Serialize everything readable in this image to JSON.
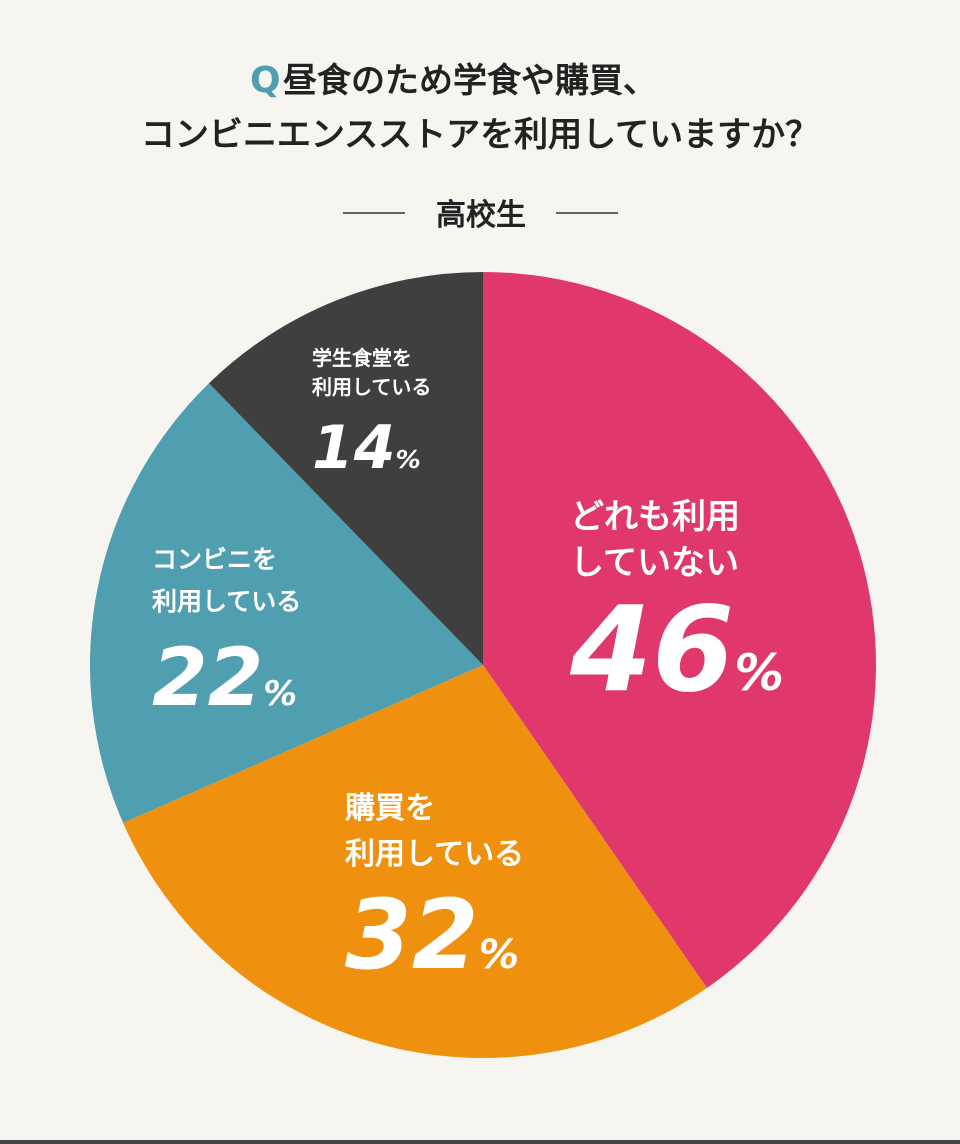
{
  "chart_data": {
    "type": "pie",
    "question_marker": "Q",
    "title": [
      "昼食のため学食や購買、",
      "コンビニエンスストアを利用していますか？"
    ],
    "subtitle": "高校生",
    "categories": [
      [
        "どれも利用",
        "していない"
      ],
      [
        "購買を",
        "利用している"
      ],
      [
        "コンビニを",
        "利用している"
      ],
      [
        "学生食堂を",
        "利用している"
      ]
    ],
    "values": [
      46,
      32,
      22,
      14
    ],
    "value_labels": [
      "46%",
      "32%",
      "22%",
      "14%"
    ],
    "colors": [
      "#e0386a",
      "#f0900f",
      "#4f9fb0",
      "#3f3f40"
    ]
  }
}
